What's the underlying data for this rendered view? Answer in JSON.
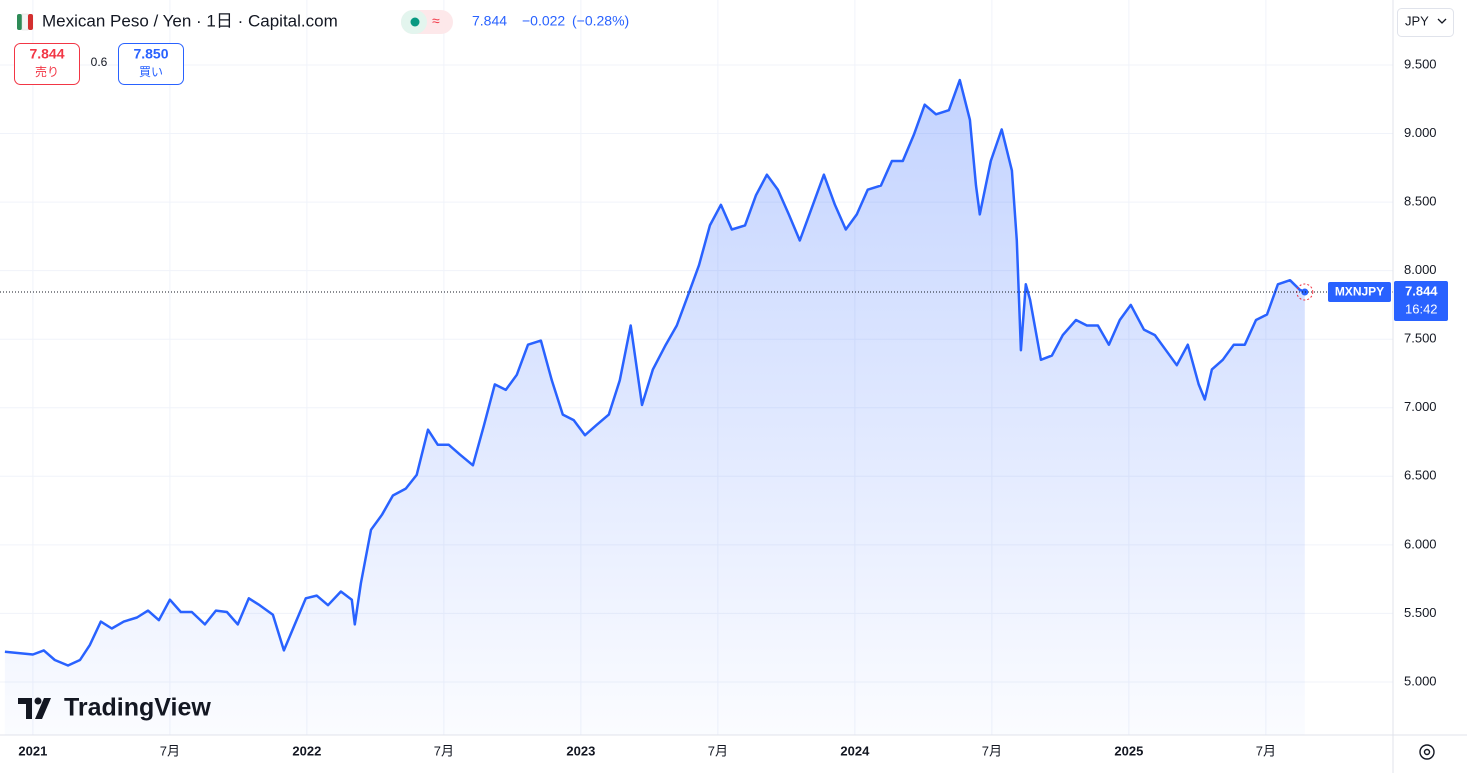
{
  "header": {
    "title": "Mexican Peso / Yen · 1日 · Capital.com",
    "price": "7.844",
    "change": "−0.022",
    "change_pct": "(−0.28%)",
    "sell_price": "7.844",
    "sell_label": "売り",
    "spread": "0.6",
    "buy_price": "7.850",
    "buy_label": "買い",
    "currency": "JPY"
  },
  "logo": "TradingView",
  "chart_data": {
    "type": "area",
    "color": "#2962ff",
    "symbol": "MXNJPY",
    "last_price": 7.844,
    "countdown": "16:42",
    "x": [
      2020.898,
      2021.0,
      2021.04,
      2021.08,
      2021.128,
      2021.172,
      2021.208,
      2021.248,
      2021.288,
      2021.332,
      2021.38,
      2021.42,
      2021.46,
      2021.5,
      2021.54,
      2021.58,
      2021.628,
      2021.668,
      2021.708,
      2021.748,
      2021.788,
      2021.828,
      2021.876,
      2021.916,
      2021.956,
      2021.996,
      2022.036,
      2022.077,
      2022.124,
      2022.164,
      2022.175,
      2022.197,
      2022.234,
      2022.274,
      2022.314,
      2022.361,
      2022.401,
      2022.442,
      2022.478,
      2022.518,
      2022.558,
      2022.606,
      2022.646,
      2022.686,
      2022.726,
      2022.766,
      2022.807,
      2022.854,
      2022.894,
      2022.934,
      2022.974,
      2023.015,
      2023.055,
      2023.102,
      2023.142,
      2023.182,
      2023.223,
      2023.263,
      2023.31,
      2023.35,
      2023.391,
      2023.431,
      2023.471,
      2023.511,
      2023.551,
      2023.599,
      2023.639,
      2023.679,
      2023.719,
      2023.759,
      2023.799,
      2023.847,
      2023.887,
      2023.927,
      2023.967,
      2024.007,
      2024.047,
      2024.095,
      2024.135,
      2024.175,
      2024.215,
      2024.255,
      2024.296,
      2024.343,
      2024.383,
      2024.42,
      2024.442,
      2024.456,
      2024.496,
      2024.536,
      2024.573,
      2024.591,
      2024.606,
      2024.624,
      2024.639,
      2024.679,
      2024.719,
      2024.759,
      2024.807,
      2024.847,
      2024.887,
      2024.927,
      2024.967,
      2025.007,
      2025.055,
      2025.095,
      2025.135,
      2025.175,
      2025.215,
      2025.255,
      2025.277,
      2025.303,
      2025.343,
      2025.383,
      2025.423,
      2025.464,
      2025.504,
      2025.544,
      2025.588,
      2025.624,
      2025.642
    ],
    "values": [
      5.22,
      5.2,
      5.23,
      5.16,
      5.12,
      5.16,
      5.27,
      5.44,
      5.39,
      5.44,
      5.47,
      5.52,
      5.45,
      5.6,
      5.51,
      5.51,
      5.42,
      5.52,
      5.51,
      5.42,
      5.61,
      5.56,
      5.49,
      5.23,
      5.42,
      5.61,
      5.63,
      5.56,
      5.66,
      5.6,
      5.42,
      5.72,
      6.11,
      6.22,
      6.36,
      6.41,
      6.51,
      6.84,
      6.73,
      6.73,
      6.66,
      6.58,
      6.87,
      7.17,
      7.13,
      7.24,
      7.46,
      7.49,
      7.2,
      6.95,
      6.91,
      6.8,
      6.87,
      6.95,
      7.2,
      7.6,
      7.02,
      7.28,
      7.46,
      7.6,
      7.82,
      8.04,
      8.33,
      8.48,
      8.3,
      8.33,
      8.55,
      8.7,
      8.59,
      8.41,
      8.22,
      8.48,
      8.7,
      8.48,
      8.3,
      8.41,
      8.59,
      8.62,
      8.8,
      8.8,
      8.99,
      9.21,
      9.14,
      9.17,
      9.39,
      9.1,
      8.62,
      8.41,
      8.8,
      9.03,
      8.73,
      8.22,
      7.42,
      7.9,
      7.79,
      7.35,
      7.38,
      7.53,
      7.64,
      7.6,
      7.6,
      7.46,
      7.64,
      7.75,
      7.57,
      7.53,
      7.42,
      7.31,
      7.46,
      7.17,
      7.06,
      7.28,
      7.35,
      7.46,
      7.46,
      7.64,
      7.68,
      7.9,
      7.93,
      7.86,
      7.844
    ],
    "xlim": [
      2020.88,
      2025.964
    ],
    "xticks": [
      2021,
      {
        "value": 2021.5,
        "label": "7月"
      },
      2022,
      {
        "value": 2022.5,
        "label": "7月"
      },
      2023,
      {
        "value": 2023.5,
        "label": "7月"
      },
      2024,
      {
        "value": 2024.5,
        "label": "7月"
      },
      2025,
      {
        "value": 2025.5,
        "label": "7月"
      }
    ],
    "ylim": [
      4.613,
      9.974
    ],
    "yticks": [
      {
        "value": 5,
        "label": "5.000"
      },
      {
        "value": 5.5,
        "label": "5.500"
      },
      {
        "value": 6,
        "label": "6.000"
      },
      {
        "value": 6.5,
        "label": "6.500"
      },
      {
        "value": 7,
        "label": "7.000"
      },
      {
        "value": 7.5,
        "label": "7.500"
      },
      {
        "value": 8,
        "label": "8.000"
      },
      {
        "value": 8.5,
        "label": "8.500"
      },
      {
        "value": 9,
        "label": "9.000"
      },
      {
        "value": 9.5,
        "label": "9.500"
      }
    ],
    "grid": true
  }
}
